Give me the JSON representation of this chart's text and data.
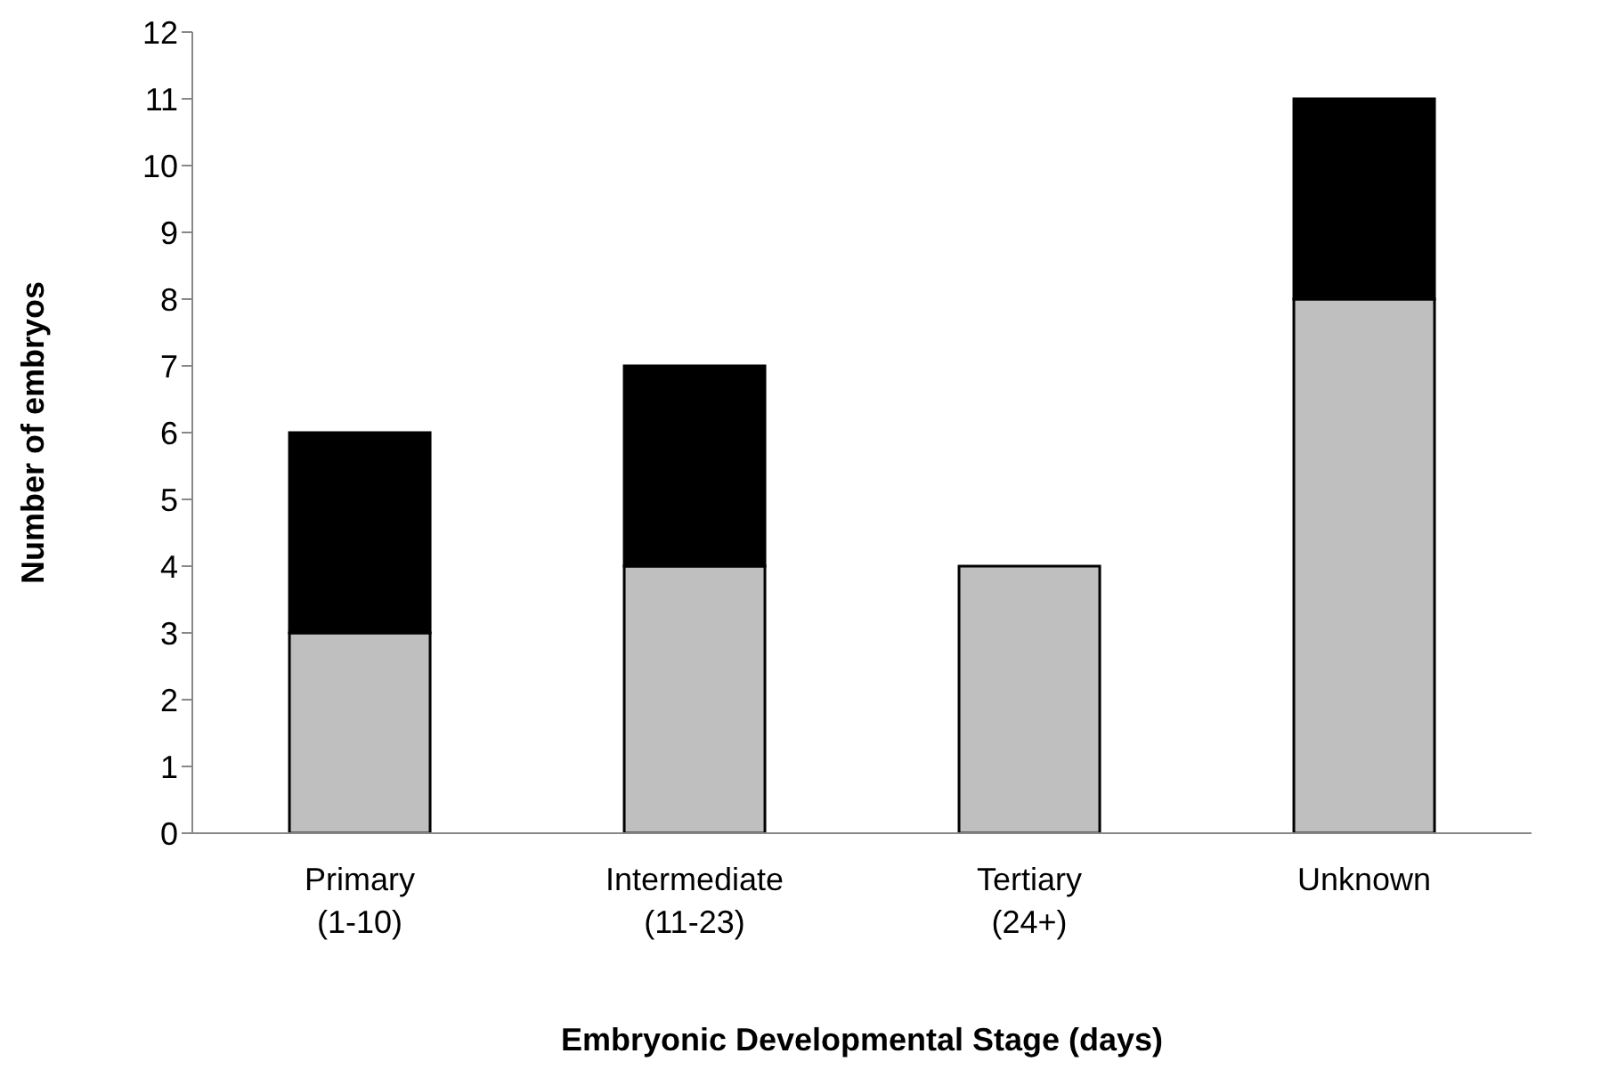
{
  "chart_data": {
    "type": "bar",
    "stacked": true,
    "xlabel": "Embryonic Developmental Stage (days)",
    "ylabel": "Number of embryos",
    "categories": [
      "Primary\n(1-10)",
      "Intermediate\n(11-23)",
      "Tertiary\n(24+)",
      "Unknown"
    ],
    "series": [
      {
        "color": "#bfbfbf",
        "values": [
          3,
          4,
          4,
          8
        ]
      },
      {
        "color": "#000000",
        "values": [
          3,
          3,
          0,
          3
        ]
      }
    ],
    "ylim": [
      0,
      12
    ],
    "yticks": [
      0,
      1,
      2,
      3,
      4,
      5,
      6,
      7,
      8,
      9,
      10,
      11,
      12
    ]
  }
}
